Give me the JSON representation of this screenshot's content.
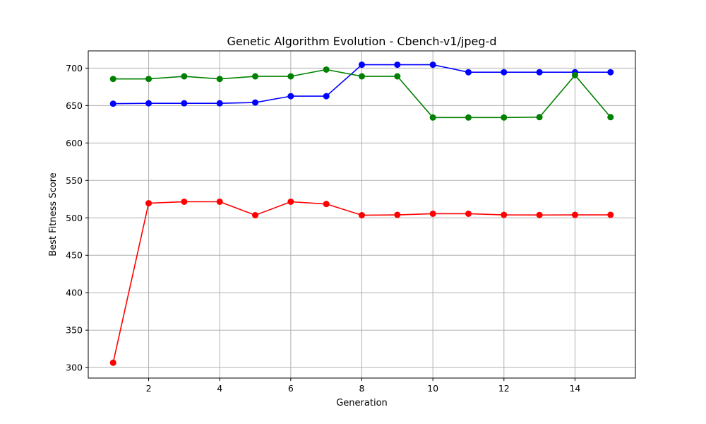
{
  "chart_data": {
    "type": "line",
    "title": "Genetic Algorithm Evolution - Cbench-v1/jpeg-d",
    "xlabel": "Generation",
    "ylabel": "Best Fitness Score",
    "x": [
      1,
      2,
      3,
      4,
      5,
      6,
      7,
      8,
      9,
      10,
      11,
      12,
      13,
      14,
      15
    ],
    "xlim": [
      0.3,
      15.7
    ],
    "ylim": [
      286,
      723
    ],
    "xticks": [
      2,
      4,
      6,
      8,
      10,
      12,
      14
    ],
    "yticks": [
      300,
      350,
      400,
      450,
      500,
      550,
      600,
      650,
      700
    ],
    "grid": true,
    "series": [
      {
        "color": "#ff0000",
        "marker": "circle",
        "values": [
          306.5,
          519.5,
          521.5,
          521.5,
          503.5,
          521.5,
          518.5,
          503.5,
          504,
          505.5,
          505.5,
          504,
          503.8,
          504,
          504
        ]
      },
      {
        "color": "#0000ff",
        "marker": "circle",
        "values": [
          652.5,
          653,
          653,
          653,
          654,
          662.5,
          662.5,
          704.5,
          704.5,
          704.5,
          694.5,
          694.5,
          694.5,
          694.5,
          694.5
        ]
      },
      {
        "color": "#008000",
        "marker": "circle",
        "values": [
          685.5,
          685.5,
          689,
          685.5,
          689,
          689,
          698,
          689,
          689,
          634,
          634,
          634,
          634.5,
          690.5,
          634.5
        ]
      }
    ]
  }
}
